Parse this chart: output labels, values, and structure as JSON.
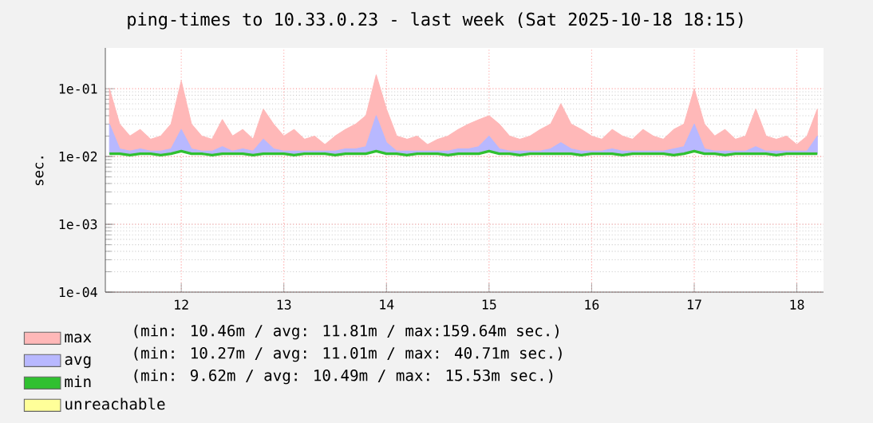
{
  "chart_data": {
    "type": "area",
    "title": "ping-times to 10.33.0.23 - last week (Sat 2025-10-18 18:15)",
    "ylabel": "sec.",
    "log": "y",
    "grid": true,
    "legend": "bottom",
    "xlim": [
      11.76,
      18.76
    ],
    "xticks": [
      {
        "value": 12.5,
        "label": "12"
      },
      {
        "value": 13.5,
        "label": "13"
      },
      {
        "value": 14.5,
        "label": "14"
      },
      {
        "value": 15.5,
        "label": "15"
      },
      {
        "value": 16.5,
        "label": "16"
      },
      {
        "value": 17.5,
        "label": "17"
      },
      {
        "value": 18.5,
        "label": "18"
      }
    ],
    "ylim": [
      0.0001,
      0.4
    ],
    "yticks": [
      {
        "value": 0.0001,
        "label": "1e-04"
      },
      {
        "value": 0.001,
        "label": "1e-03"
      },
      {
        "value": 0.01,
        "label": "1e-02"
      },
      {
        "value": 0.1,
        "label": "1e-01"
      }
    ],
    "x": [
      11.8,
      11.9,
      12.0,
      12.1,
      12.2,
      12.3,
      12.4,
      12.5,
      12.6,
      12.7,
      12.8,
      12.9,
      13.0,
      13.1,
      13.2,
      13.3,
      13.4,
      13.5,
      13.6,
      13.7,
      13.8,
      13.9,
      14.0,
      14.1,
      14.2,
      14.3,
      14.4,
      14.5,
      14.6,
      14.7,
      14.8,
      14.9,
      15.0,
      15.1,
      15.2,
      15.3,
      15.4,
      15.5,
      15.6,
      15.7,
      15.8,
      15.9,
      16.0,
      16.1,
      16.2,
      16.3,
      16.4,
      16.5,
      16.6,
      16.7,
      16.8,
      16.9,
      17.0,
      17.1,
      17.2,
      17.3,
      17.4,
      17.5,
      17.6,
      17.7,
      17.8,
      17.9,
      18.0,
      18.1,
      18.2,
      18.3,
      18.4,
      18.5,
      18.6,
      18.7
    ],
    "series": [
      {
        "name": "max",
        "color": "#ffb8b8",
        "values": [
          0.1,
          0.03,
          0.02,
          0.025,
          0.018,
          0.02,
          0.03,
          0.13,
          0.03,
          0.02,
          0.018,
          0.035,
          0.02,
          0.025,
          0.018,
          0.05,
          0.03,
          0.02,
          0.025,
          0.018,
          0.02,
          0.015,
          0.02,
          0.025,
          0.03,
          0.04,
          0.16,
          0.05,
          0.02,
          0.018,
          0.02,
          0.015,
          0.018,
          0.02,
          0.025,
          0.03,
          0.035,
          0.04,
          0.03,
          0.02,
          0.018,
          0.02,
          0.025,
          0.03,
          0.06,
          0.03,
          0.025,
          0.02,
          0.018,
          0.025,
          0.02,
          0.018,
          0.025,
          0.02,
          0.018,
          0.025,
          0.03,
          0.1,
          0.03,
          0.02,
          0.025,
          0.018,
          0.02,
          0.05,
          0.02,
          0.018,
          0.02,
          0.015,
          0.02,
          0.05
        ]
      },
      {
        "name": "avg",
        "color": "#b8b8ff",
        "values": [
          0.03,
          0.013,
          0.012,
          0.013,
          0.012,
          0.012,
          0.013,
          0.025,
          0.013,
          0.012,
          0.012,
          0.014,
          0.012,
          0.013,
          0.012,
          0.018,
          0.013,
          0.012,
          0.012,
          0.012,
          0.012,
          0.012,
          0.012,
          0.013,
          0.013,
          0.014,
          0.04,
          0.016,
          0.012,
          0.012,
          0.012,
          0.012,
          0.012,
          0.012,
          0.013,
          0.013,
          0.014,
          0.02,
          0.013,
          0.012,
          0.012,
          0.012,
          0.012,
          0.013,
          0.016,
          0.013,
          0.012,
          0.012,
          0.012,
          0.013,
          0.012,
          0.012,
          0.012,
          0.012,
          0.012,
          0.013,
          0.014,
          0.03,
          0.013,
          0.012,
          0.012,
          0.012,
          0.012,
          0.014,
          0.012,
          0.012,
          0.012,
          0.012,
          0.012,
          0.02
        ]
      },
      {
        "name": "min",
        "type": "line",
        "color": "#30c030",
        "values": [
          0.011,
          0.011,
          0.0105,
          0.011,
          0.011,
          0.0105,
          0.011,
          0.012,
          0.011,
          0.011,
          0.0105,
          0.011,
          0.011,
          0.011,
          0.0105,
          0.011,
          0.011,
          0.011,
          0.0105,
          0.011,
          0.011,
          0.011,
          0.0105,
          0.011,
          0.011,
          0.011,
          0.012,
          0.011,
          0.011,
          0.0105,
          0.011,
          0.011,
          0.011,
          0.0105,
          0.011,
          0.011,
          0.011,
          0.012,
          0.011,
          0.011,
          0.0105,
          0.011,
          0.011,
          0.011,
          0.011,
          0.011,
          0.0105,
          0.011,
          0.011,
          0.011,
          0.0105,
          0.011,
          0.011,
          0.011,
          0.011,
          0.0105,
          0.011,
          0.012,
          0.011,
          0.011,
          0.0105,
          0.011,
          0.011,
          0.011,
          0.011,
          0.0105,
          0.011,
          0.011,
          0.011,
          0.011
        ]
      },
      {
        "name": "unreachable",
        "color": "#ffff99",
        "values": [
          null,
          null,
          null,
          null,
          null,
          null,
          null,
          null,
          null,
          null,
          null,
          null,
          null,
          null,
          null,
          null,
          null,
          null,
          null,
          null,
          null,
          null,
          null,
          null,
          null,
          null,
          null,
          null,
          null,
          null,
          null,
          null,
          null,
          null,
          null,
          null,
          null,
          null,
          null,
          null,
          null,
          null,
          null,
          null,
          null,
          null,
          null,
          null,
          null,
          null,
          null,
          null,
          null,
          null,
          null,
          null,
          null,
          null,
          null,
          null,
          null,
          null,
          null,
          null,
          null,
          null,
          null,
          null,
          null,
          null
        ]
      }
    ],
    "annotations": [
      "(min: 10.46m / avg: 11.81m / max:159.64m sec.)",
      "(min: 10.27m / avg: 11.01m / max: 40.71m sec.)",
      "(min:  9.62m / avg: 10.49m / max: 15.53m sec.)"
    ]
  }
}
